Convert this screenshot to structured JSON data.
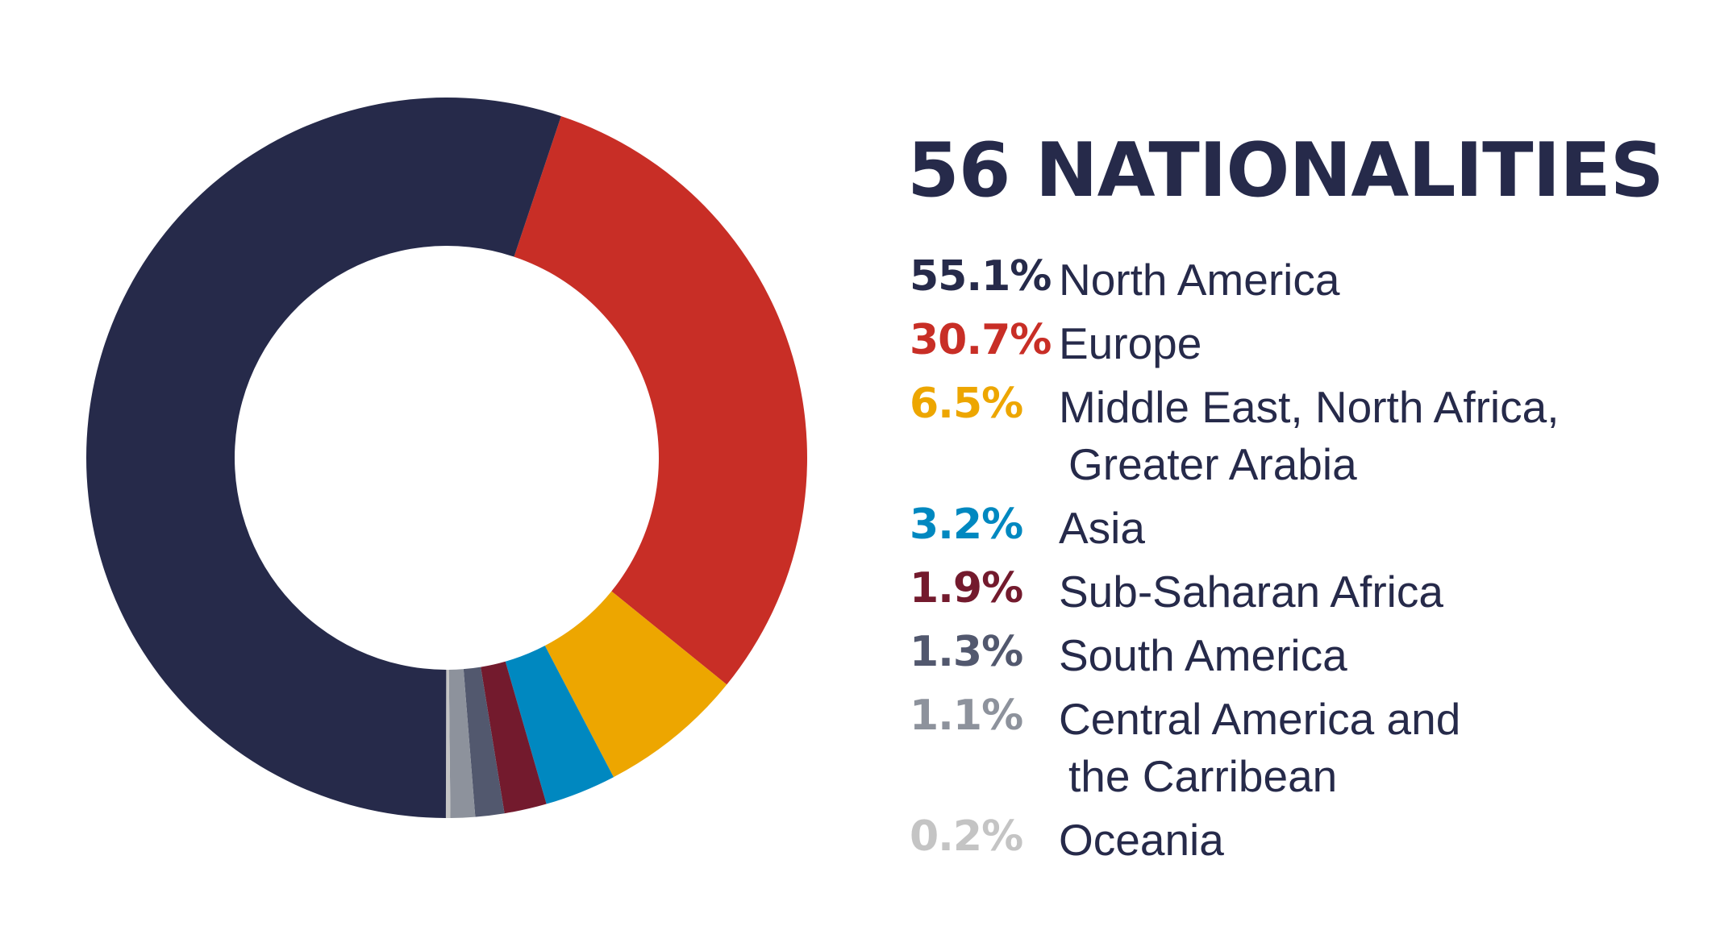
{
  "title": "56 NATIONALITIES",
  "colors": {
    "text": "#262a4a",
    "background": "#ffffff"
  },
  "chart_data": {
    "type": "pie",
    "donut": true,
    "legend_position": "right",
    "slices": [
      {
        "value_label": "55.1%",
        "value": 55.1,
        "label_lines": [
          "North America"
        ],
        "color": "#262a4a"
      },
      {
        "value_label": "30.7%",
        "value": 30.7,
        "label_lines": [
          "Europe"
        ],
        "color": "#c82e26"
      },
      {
        "value_label": "6.5%",
        "value": 6.5,
        "label_lines": [
          "Middle East, North Africa,",
          "Greater Arabia"
        ],
        "color": "#eda600"
      },
      {
        "value_label": "3.2%",
        "value": 3.2,
        "label_lines": [
          "Asia"
        ],
        "color": "#0088c0"
      },
      {
        "value_label": "1.9%",
        "value": 1.9,
        "label_lines": [
          "Sub-Saharan Africa"
        ],
        "color": "#731a2d"
      },
      {
        "value_label": "1.3%",
        "value": 1.3,
        "label_lines": [
          "South America"
        ],
        "color": "#52586e"
      },
      {
        "value_label": "1.1%",
        "value": 1.1,
        "label_lines": [
          "Central America and",
          "the Carribean"
        ],
        "color": "#8d929c"
      },
      {
        "value_label": "0.2%",
        "value": 0.2,
        "label_lines": [
          "Oceania"
        ],
        "color": "#c4c4c4"
      }
    ]
  }
}
